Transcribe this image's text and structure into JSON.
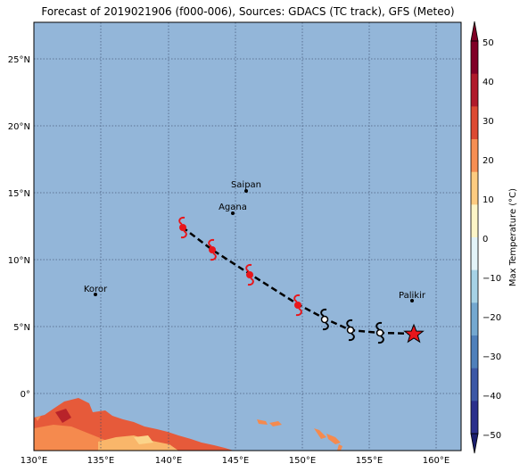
{
  "title": "Forecast of 2019021906 (f000-006), Sources: GDACS (TC track), GFS (Meteo)",
  "map": {
    "lon_ticks": [
      "130°E",
      "135°E",
      "140°E",
      "145°E",
      "150°E",
      "155°E",
      "160°E"
    ],
    "lat_ticks": [
      "25°N",
      "20°N",
      "15°N",
      "10°N",
      "5°N",
      "0°"
    ],
    "colors": {
      "ocean": "#93b6d9",
      "grid": "#3a4a6a",
      "track": "#000000",
      "storm": "#e8161b",
      "land_hot": "#e65a3a"
    }
  },
  "cities": [
    {
      "name": "Saipan"
    },
    {
      "name": "Agana"
    },
    {
      "name": "Koror"
    },
    {
      "name": "Palikir"
    }
  ],
  "track": [
    {
      "lon": 158.3,
      "lat": 4.5,
      "marker": "star"
    },
    {
      "lon": 155.6,
      "lat": 4.5,
      "marker": "cyclone-white"
    },
    {
      "lon": 153.5,
      "lat": 4.7,
      "marker": "cyclone-white"
    },
    {
      "lon": 151.6,
      "lat": 5.5,
      "marker": "cyclone-white"
    },
    {
      "lon": 149.6,
      "lat": 6.6,
      "marker": "cyclone-red"
    },
    {
      "lon": 145.9,
      "lat": 8.9,
      "marker": "cyclone-red"
    },
    {
      "lon": 143.2,
      "lat": 10.8,
      "marker": "cyclone-red"
    },
    {
      "lon": 141.0,
      "lat": 12.3,
      "marker": "cyclone-red"
    }
  ],
  "colorbar": {
    "label": "Max Temperature (°C)",
    "ticks": [
      "50",
      "40",
      "30",
      "20",
      "10",
      "0",
      "−10",
      "−20",
      "−30",
      "−40",
      "−50"
    ],
    "bands": [
      "#2a2f8c",
      "#3c58a6",
      "#4f80bb",
      "#74a8d0",
      "#a6d2e6",
      "#e3f3f8",
      "#fdf5c7",
      "#fdcb80",
      "#f68e53",
      "#dc4a32",
      "#b01a2a",
      "#800026"
    ]
  }
}
